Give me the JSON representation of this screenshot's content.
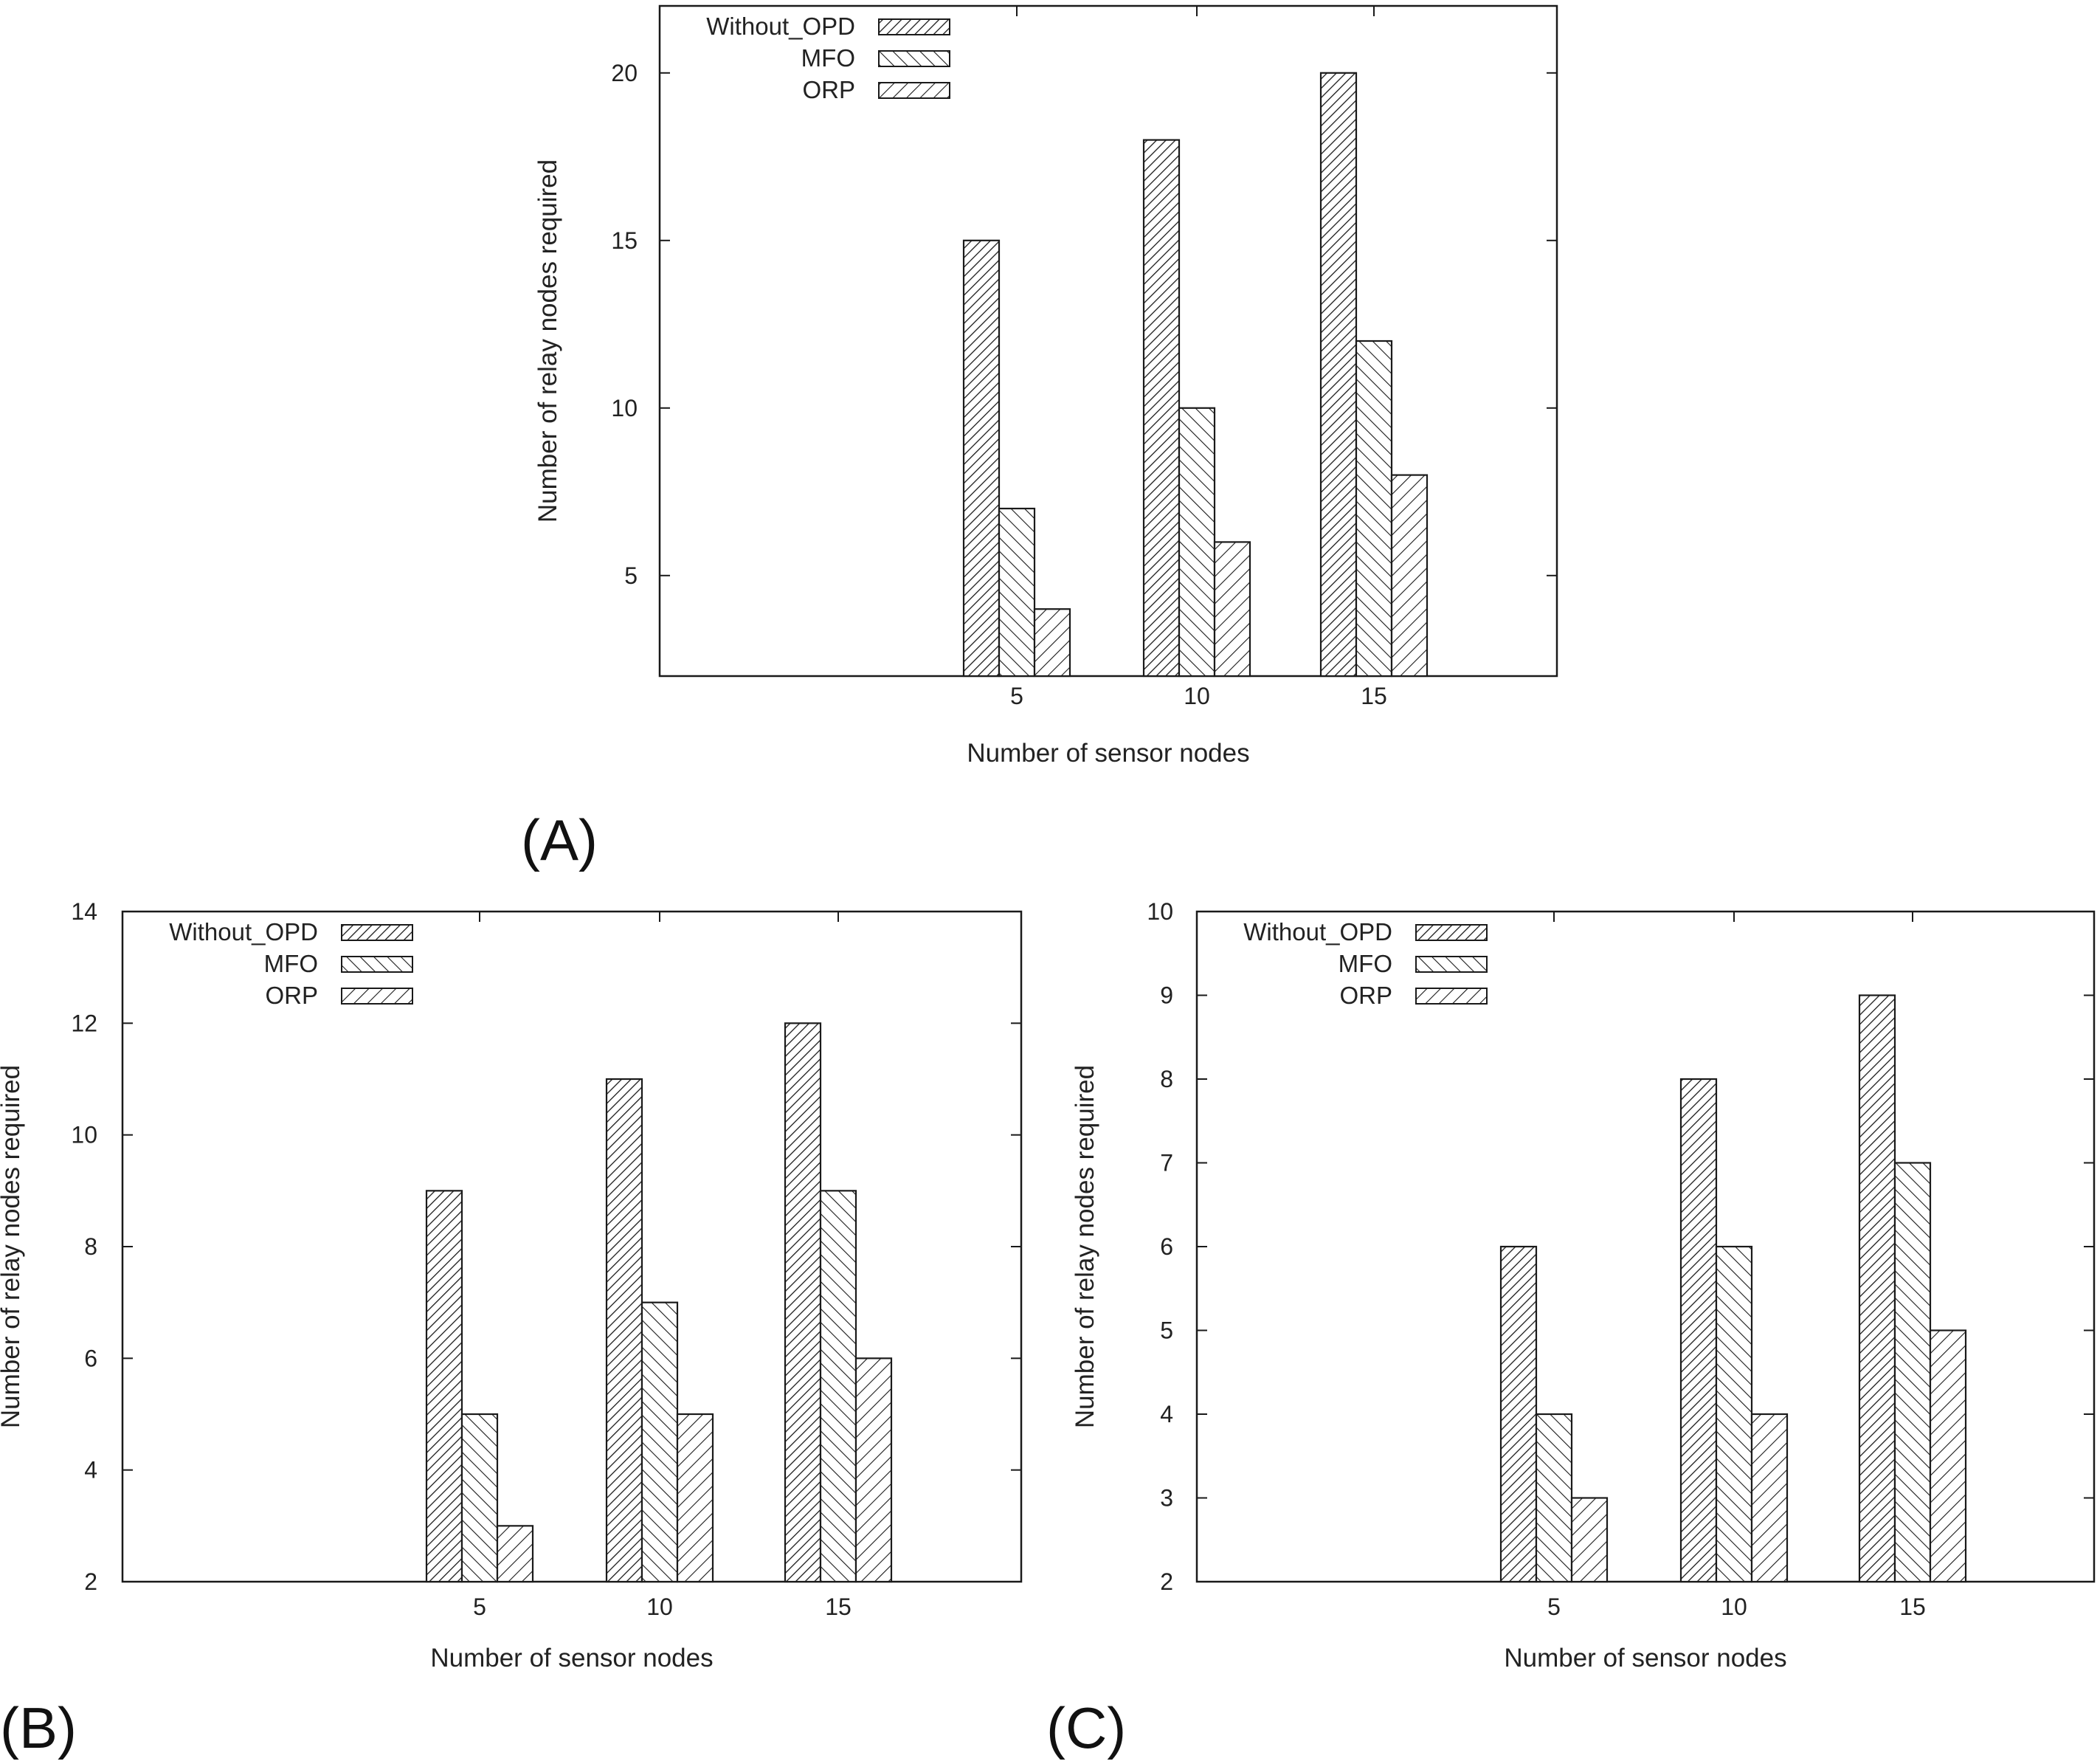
{
  "chart_data": [
    {
      "panel_label": "(A)",
      "type": "bar",
      "categories": [
        "5",
        "10",
        "15"
      ],
      "series": [
        {
          "name": "Without_OPD",
          "pattern": "hatch-dense-right",
          "values": [
            15,
            18,
            20
          ]
        },
        {
          "name": "MFO",
          "pattern": "hatch-left",
          "values": [
            7,
            10,
            12
          ]
        },
        {
          "name": "ORP",
          "pattern": "hatch-right",
          "values": [
            4,
            6,
            8
          ]
        }
      ],
      "xlabel": "Number of sensor nodes",
      "ylabel": "Number of relay nodes required",
      "ylim": [
        2,
        22
      ],
      "yticks": [
        5,
        10,
        15,
        20
      ],
      "legend_position": "top-left",
      "grid": false
    },
    {
      "panel_label": "(B)",
      "type": "bar",
      "categories": [
        "5",
        "10",
        "15"
      ],
      "series": [
        {
          "name": "Without_OPD",
          "pattern": "hatch-dense-right",
          "values": [
            9,
            11,
            12
          ]
        },
        {
          "name": "MFO",
          "pattern": "hatch-left",
          "values": [
            5,
            7,
            9
          ]
        },
        {
          "name": "ORP",
          "pattern": "hatch-right",
          "values": [
            3,
            5,
            6
          ]
        }
      ],
      "xlabel": "Number of sensor nodes",
      "ylabel": "Number of relay nodes required",
      "ylim": [
        2,
        14
      ],
      "yticks": [
        2,
        4,
        6,
        8,
        10,
        12,
        14
      ],
      "legend_position": "top-left",
      "grid": false
    },
    {
      "panel_label": "(C)",
      "type": "bar",
      "categories": [
        "5",
        "10",
        "15"
      ],
      "series": [
        {
          "name": "Without_OPD",
          "pattern": "hatch-dense-right",
          "values": [
            6,
            8,
            9
          ]
        },
        {
          "name": "MFO",
          "pattern": "hatch-left",
          "values": [
            4,
            6,
            7
          ]
        },
        {
          "name": "ORP",
          "pattern": "hatch-right",
          "values": [
            3,
            4,
            5
          ]
        }
      ],
      "xlabel": "Number of sensor nodes",
      "ylabel": "Number of relay nodes required",
      "ylim": [
        2,
        10
      ],
      "yticks": [
        2,
        3,
        4,
        5,
        6,
        7,
        8,
        9,
        10
      ],
      "legend_position": "top-left",
      "grid": false
    }
  ],
  "colors": {
    "stroke": "#1a1a1a",
    "text": "#222222",
    "background": "#ffffff"
  }
}
